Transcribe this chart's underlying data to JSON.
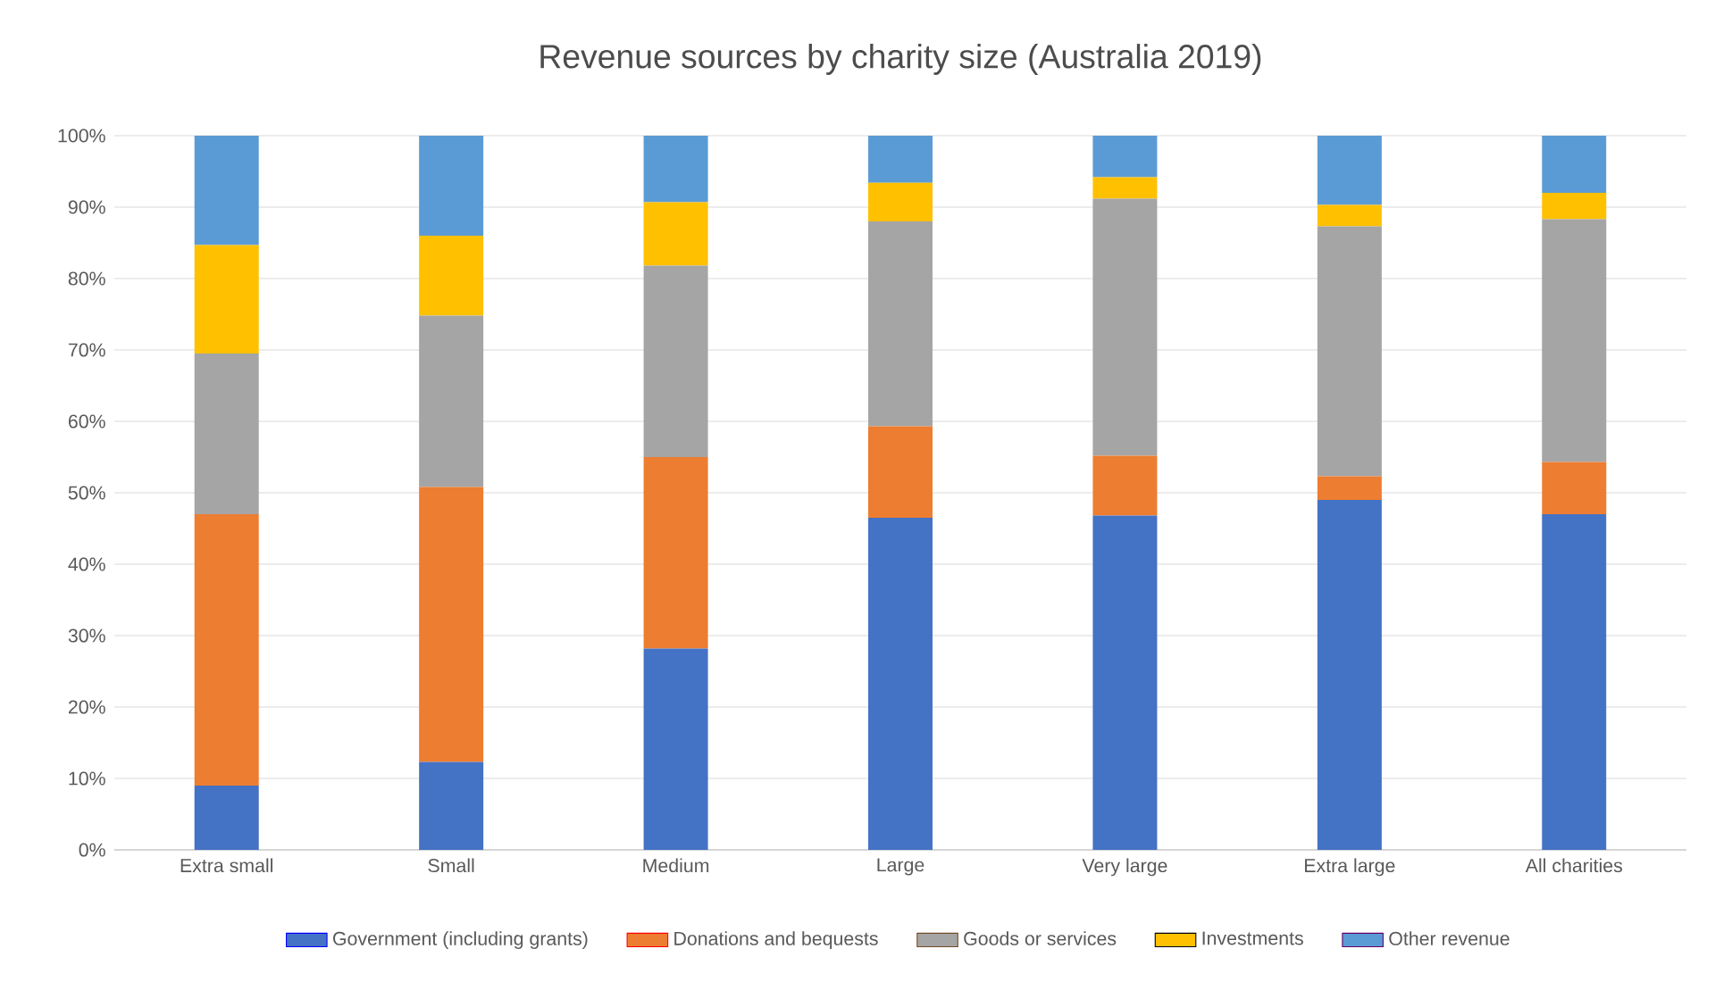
{
  "chart_data": {
    "type": "bar",
    "title": "Revenue sources by charity size (Australia 2019)",
    "categories": [
      "Extra small",
      "Small",
      "Medium",
      "Large",
      "Very large",
      "Extra large",
      "All charities"
    ],
    "stacked": true,
    "series": [
      {
        "name": "Government (including grants)",
        "color": "#4472c4",
        "values": [
          9,
          12.3,
          28.2,
          46.5,
          46.8,
          49,
          47
        ]
      },
      {
        "name": "Donations and bequests",
        "color": "#ed7d31",
        "values": [
          38,
          38.5,
          26.8,
          12.8,
          8.4,
          3.3,
          7.3
        ]
      },
      {
        "name": "Goods or services",
        "color": "#a5a5a5",
        "values": [
          22.5,
          24,
          26.8,
          28.7,
          36,
          35,
          34
        ]
      },
      {
        "name": "Investments",
        "color": "#ffc000",
        "values": [
          15.2,
          11.2,
          8.9,
          5.4,
          3,
          3,
          3.7
        ]
      },
      {
        "name": "Other revenue",
        "color": "#5b9bd5",
        "values": [
          15.3,
          14,
          9.3,
          6.6,
          5.8,
          9.7,
          8
        ]
      }
    ],
    "ylim": [
      0,
      100
    ],
    "yticks": [
      {
        "value": 0,
        "label": "0%"
      },
      {
        "value": 10,
        "label": "10%"
      },
      {
        "value": 20,
        "label": "20%"
      },
      {
        "value": 30,
        "label": "30%"
      },
      {
        "value": 40,
        "label": "40%"
      },
      {
        "value": 50,
        "label": "50%"
      },
      {
        "value": 60,
        "label": "60%"
      },
      {
        "value": 70,
        "label": "70%"
      },
      {
        "value": 80,
        "label": "80%"
      },
      {
        "value": 90,
        "label": "90%"
      },
      {
        "value": 100,
        "label": "100%"
      }
    ],
    "grid": "y",
    "legend": "bottom"
  }
}
